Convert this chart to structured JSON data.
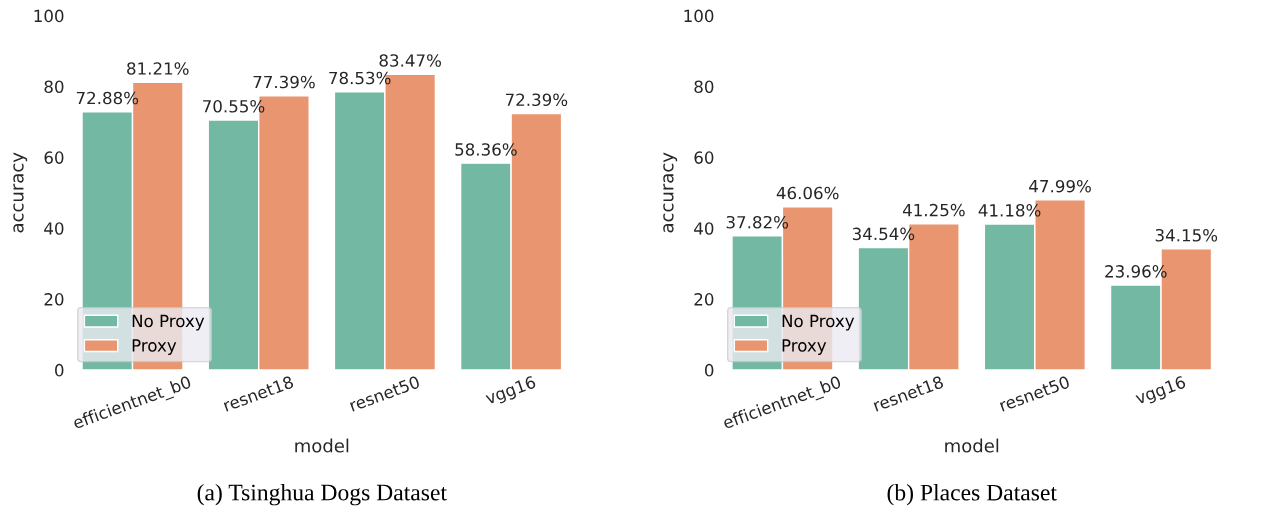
{
  "chart_data": [
    {
      "type": "bar",
      "title": "(a) Tsinghua Dogs Dataset",
      "xlabel": "model",
      "ylabel": "accuracy",
      "categories": [
        "efficientnet_b0",
        "resnet18",
        "resnet50",
        "vgg16"
      ],
      "series": [
        {
          "name": "No Proxy",
          "color": "#72b8a3",
          "values": [
            72.88,
            70.55,
            78.53,
            58.36
          ],
          "value_labels": [
            "72.88%",
            "70.55%",
            "78.53%",
            "58.36%"
          ]
        },
        {
          "name": "Proxy",
          "color": "#e9956f",
          "values": [
            81.21,
            77.39,
            83.47,
            72.39
          ],
          "value_labels": [
            "81.21%",
            "77.39%",
            "83.47%",
            "72.39%"
          ]
        }
      ],
      "ylim": [
        0,
        100
      ],
      "yticks": [
        0,
        20,
        40,
        60,
        80,
        100
      ],
      "legend": "bottom left",
      "grid": false
    },
    {
      "type": "bar",
      "title": "(b) Places Dataset",
      "xlabel": "model",
      "ylabel": "accuracy",
      "categories": [
        "efficientnet_b0",
        "resnet18",
        "resnet50",
        "vgg16"
      ],
      "series": [
        {
          "name": "No Proxy",
          "color": "#72b8a3",
          "values": [
            37.82,
            34.54,
            41.18,
            23.96
          ],
          "value_labels": [
            "37.82%",
            "34.54%",
            "41.18%",
            "23.96%"
          ]
        },
        {
          "name": "Proxy",
          "color": "#e9956f",
          "values": [
            46.06,
            41.25,
            47.99,
            34.15
          ],
          "value_labels": [
            "46.06%",
            "41.25%",
            "47.99%",
            "34.15%"
          ]
        }
      ],
      "ylim": [
        0,
        100
      ],
      "yticks": [
        0,
        20,
        40,
        60,
        80,
        100
      ],
      "legend": "bottom left",
      "grid": false
    }
  ]
}
